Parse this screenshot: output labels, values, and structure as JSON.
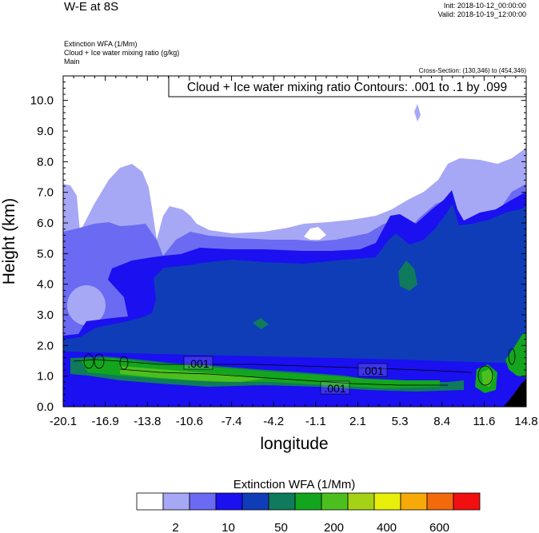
{
  "header": {
    "title": "W-E at 8S",
    "init": "Init: 2018-10-12_00:00:00",
    "valid": "Valid: 2018-10-19_12:00:00",
    "variables": [
      "Extinction WFA   (1/Mm)",
      "Cloud + Ice water mixing ratio   (g/kg)",
      "Main"
    ],
    "cross_section": "Cross-Section: (130,346) to (454,346)"
  },
  "chart_data": {
    "type": "heatmap",
    "title": "W-E at 8S",
    "xlabel": "longitude",
    "ylabel": "Height (km)",
    "xlim": [
      -20.1,
      14.8
    ],
    "ylim": [
      0.0,
      10.8
    ],
    "xticks": [
      "-20.1",
      "-16.9",
      "-13.8",
      "-10.6",
      "-7.4",
      "-4.2",
      "-1.1",
      "2.1",
      "5.3",
      "8.4",
      "11.6",
      "14.8"
    ],
    "yticks": [
      "0.0",
      "1.0",
      "2.0",
      "3.0",
      "4.0",
      "5.0",
      "6.0",
      "7.0",
      "8.0",
      "9.0",
      "10.0"
    ],
    "grid": false,
    "contour_annotation": "Cloud + Ice water mixing ratio Contours: .001 to .1 by .099",
    "contour_labels": [
      {
        "text": ".001",
        "x": -10.6,
        "y": 1.4
      },
      {
        "text": ".001",
        "x": 3.2,
        "y": 1.2
      },
      {
        "text": ".001",
        "x": 0.5,
        "y": 0.6
      }
    ],
    "colorbar": {
      "title": "Extinction WFA  (1/Mm)",
      "colors": [
        "#ffffff",
        "#a6a8f5",
        "#6b6af2",
        "#1a10f0",
        "#0f3db8",
        "#0f7a5c",
        "#14a51e",
        "#4cbf1e",
        "#a5d214",
        "#e8ef0a",
        "#f7a90a",
        "#f26a0c",
        "#f20f0f"
      ],
      "labels": [
        "2",
        "10",
        "50",
        "200",
        "400",
        "600"
      ]
    }
  }
}
